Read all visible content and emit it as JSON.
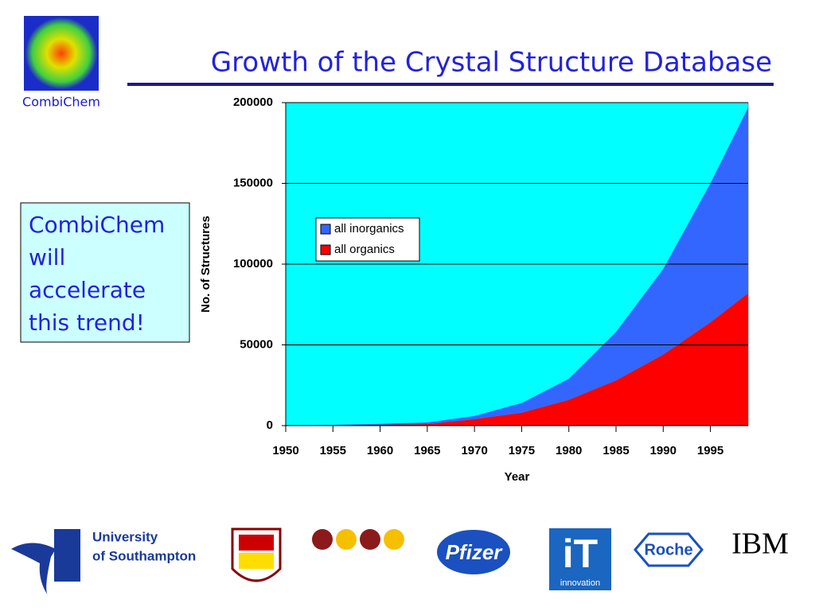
{
  "logo_caption": "CombiChem",
  "title": "Growth of the Crystal Structure Database",
  "callout_lines": [
    "CombiChem",
    "will",
    "accelerate",
    "this trend!"
  ],
  "sponsors": {
    "southampton": [
      "University",
      "of Southampton"
    ],
    "pfizer": "Pfizer",
    "it": [
      "iT",
      "innovation"
    ],
    "roche": "Roche",
    "ibm": "IBM"
  },
  "chart_data": {
    "type": "area",
    "stacked": true,
    "xlabel": "Year",
    "ylabel": "No. of Structures",
    "x": [
      1950,
      1955,
      1960,
      1965,
      1970,
      1975,
      1980,
      1985,
      1990,
      1995,
      1999
    ],
    "series": [
      {
        "name": "all inorganics",
        "color": "#3366ff",
        "values": [
          0,
          200,
          500,
          1000,
          2000,
          6000,
          13000,
          30000,
          53000,
          86000,
          115000
        ]
      },
      {
        "name": "all organics",
        "color": "#ff0000",
        "values": [
          0,
          300,
          600,
          1000,
          4000,
          8000,
          16000,
          28000,
          44000,
          64000,
          82000
        ]
      }
    ],
    "xlim": [
      1950,
      1999
    ],
    "ylim": [
      0,
      200000
    ],
    "xticks": [
      1950,
      1955,
      1960,
      1965,
      1970,
      1975,
      1980,
      1985,
      1990,
      1995
    ],
    "yticks": [
      0,
      50000,
      100000,
      150000,
      200000
    ],
    "grid": true,
    "legend": "center left",
    "plot_background": "#00ffff"
  }
}
